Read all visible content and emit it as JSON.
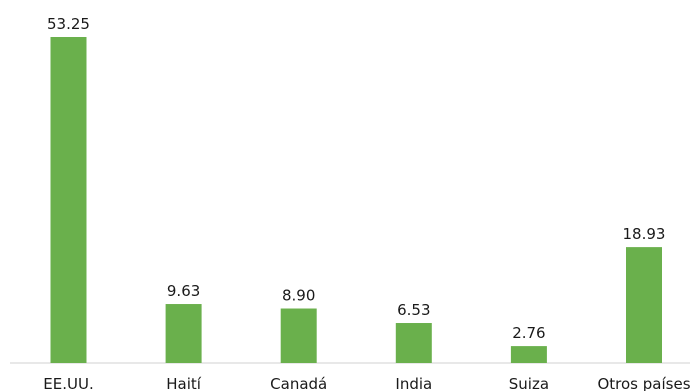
{
  "chart_data": {
    "type": "bar",
    "categories": [
      "EE.UU.",
      "Haití",
      "Canadá",
      "India",
      "Suiza",
      "Otros países"
    ],
    "values": [
      53.25,
      9.63,
      8.9,
      6.53,
      2.76,
      18.93
    ],
    "value_labels": [
      "53.25",
      "9.63",
      "8.90",
      "6.53",
      "2.76",
      "18.93"
    ],
    "title": "",
    "xlabel": "",
    "ylabel": "",
    "ylim": [
      0,
      55
    ],
    "grid": false,
    "legend": "none",
    "bar_color": "#6ab04c"
  }
}
